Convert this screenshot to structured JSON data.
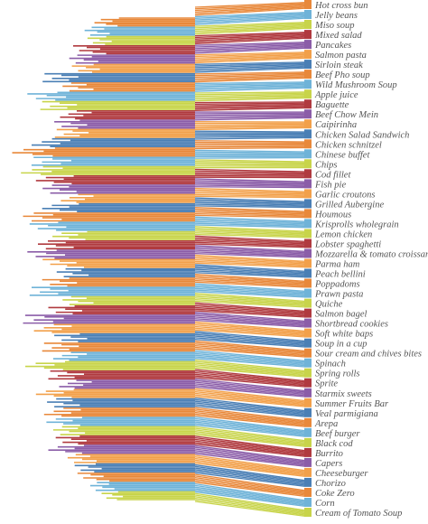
{
  "chart_data": {
    "type": "bar",
    "orientation": "horizontal",
    "title": "",
    "xlabel": "",
    "ylabel": "",
    "legend": "none",
    "grid": false,
    "palette": [
      "#e8883a",
      "#6fb3d8",
      "#c8d44a",
      "#b03a3f",
      "#8b5da8",
      "#f2a04a",
      "#4a7fb5"
    ],
    "categories": [
      "Hot cross bun",
      "Jelly beans",
      "Miso soup",
      "Mixed salad",
      "Pancakes",
      "Salmon pasta",
      "Sirloin steak",
      "Beef Pho soup",
      "Wild Mushroom Soup",
      "Apple juice",
      "Baguette",
      "Beef Chow Mein",
      "Caipirinha",
      "Chicken Salad Sandwich",
      "Chicken schnitzel",
      "Chinese buffet",
      "Chips",
      "Cod fillet",
      "Fish pie",
      "Garlic croutons",
      "Grilled Aubergine",
      "Houmous",
      "Krisprolls wholegrain",
      "Lemon chicken",
      "Lobster spaghetti",
      "Mozzarella & tomato croissant",
      "Parma ham",
      "Peach bellini",
      "Poppadoms",
      "Prawn pasta",
      "Quiche",
      "Salmon bagel",
      "Shortbread cookies",
      "Soft white baps",
      "Soup in a cup",
      "Sour cream and chives bites",
      "Spinach",
      "Spring rolls",
      "Sprite",
      "Starmix sweets",
      "Summer Fruits Bar",
      "Veal parmigiana",
      "Arepa",
      "Beef burger",
      "Black cod",
      "Burrito",
      "Capers",
      "Cheeseburger",
      "Chorizo",
      "Coke Zero",
      "Corn",
      "Cream of Tomato Soup"
    ],
    "values": [
      120,
      130,
      125,
      140,
      150,
      145,
      175,
      160,
      200,
      180,
      155,
      170,
      165,
      190,
      210,
      195,
      205,
      185,
      175,
      160,
      180,
      200,
      190,
      170,
      185,
      195,
      175,
      165,
      180,
      190,
      160,
      175,
      200,
      185,
      170,
      180,
      165,
      195,
      175,
      160,
      185,
      170,
      180,
      175,
      165,
      160,
      175,
      150,
      140,
      135,
      125,
      110
    ]
  }
}
